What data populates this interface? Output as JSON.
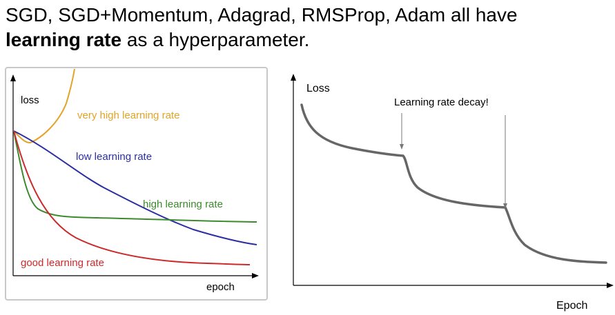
{
  "heading": {
    "line1": "SGD, SGD+Momentum, Adagrad, RMSProp, Adam all have",
    "bold": "learning rate",
    "rest": " as a hyperparameter."
  },
  "left_plot": {
    "ylabel": "loss",
    "xlabel": "epoch",
    "curves": [
      {
        "label": "very high learning rate",
        "color": "#e2a328"
      },
      {
        "label": "low learning rate",
        "color": "#2b2ea3"
      },
      {
        "label": "high learning rate",
        "color": "#3b8a2c"
      },
      {
        "label": "good learning rate",
        "color": "#cc2a2a"
      }
    ]
  },
  "right_plot": {
    "ylabel": "Loss",
    "xlabel": "Epoch",
    "annotation": "Learning rate decay!",
    "curve_color": "#666666"
  }
}
